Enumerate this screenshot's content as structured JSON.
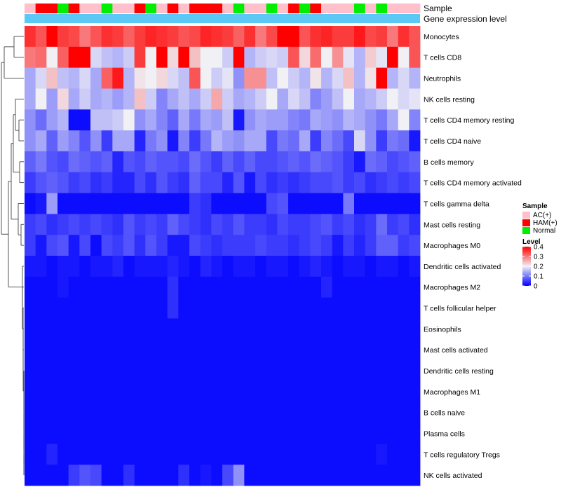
{
  "chart_data": {
    "type": "heatmap",
    "title": "",
    "xlabel": "",
    "ylabel": "",
    "annotation_labels": {
      "sample": "Sample",
      "gene_expression": "Gene expression level"
    },
    "sample_groups": [
      "AC(+)",
      "HAM(+)",
      "HAM(+)",
      "Normal",
      "HAM(+)",
      "AC(+)",
      "AC(+)",
      "Normal",
      "AC(+)",
      "AC(+)",
      "HAM(+)",
      "Normal",
      "AC(+)",
      "HAM(+)",
      "AC(+)",
      "HAM(+)",
      "HAM(+)",
      "HAM(+)",
      "AC(+)",
      "Normal",
      "AC(+)",
      "AC(+)",
      "Normal",
      "AC(+)",
      "HAM(+)",
      "Normal",
      "HAM(+)",
      "AC(+)",
      "AC(+)",
      "AC(+)",
      "Normal",
      "AC(+)",
      "Normal",
      "AC(+)",
      "AC(+)",
      "AC(+)"
    ],
    "rows": [
      {
        "name": "Monocytes",
        "values": [
          0.36,
          0.33,
          0.4,
          0.35,
          0.34,
          0.3,
          0.33,
          0.36,
          0.35,
          0.32,
          0.35,
          0.37,
          0.36,
          0.35,
          0.33,
          0.34,
          0.37,
          0.36,
          0.35,
          0.32,
          0.36,
          0.3,
          0.34,
          0.42,
          0.42,
          0.33,
          0.36,
          0.37,
          0.35,
          0.35,
          0.38,
          0.34,
          0.35,
          0.3,
          0.36,
          0.33
        ]
      },
      {
        "name": "T cells CD8",
        "values": [
          0.3,
          0.31,
          0.2,
          0.32,
          0.42,
          0.42,
          0.18,
          0.16,
          0.15,
          0.17,
          0.35,
          0.2,
          0.42,
          0.22,
          0.42,
          0.24,
          0.2,
          0.2,
          0.17,
          0.42,
          0.15,
          0.17,
          0.18,
          0.17,
          0.33,
          0.22,
          0.31,
          0.2,
          0.28,
          0.19,
          0.15,
          0.23,
          0.19,
          0.41,
          0.2,
          0.33
        ]
      },
      {
        "name": "Neutrophils",
        "values": [
          0.14,
          0.18,
          0.24,
          0.16,
          0.15,
          0.18,
          0.14,
          0.32,
          0.38,
          0.15,
          0.21,
          0.2,
          0.22,
          0.18,
          0.16,
          0.33,
          0.2,
          0.17,
          0.19,
          0.12,
          0.28,
          0.28,
          0.16,
          0.2,
          0.17,
          0.15,
          0.21,
          0.15,
          0.18,
          0.24,
          0.15,
          0.21,
          0.43,
          0.15,
          0.18,
          0.15
        ]
      },
      {
        "name": "NK cells resting",
        "values": [
          0.14,
          0.2,
          0.13,
          0.22,
          0.14,
          0.17,
          0.14,
          0.15,
          0.13,
          0.15,
          0.24,
          0.17,
          0.11,
          0.14,
          0.16,
          0.14,
          0.17,
          0.26,
          0.17,
          0.14,
          0.15,
          0.17,
          0.2,
          0.14,
          0.18,
          0.16,
          0.11,
          0.13,
          0.16,
          0.2,
          0.14,
          0.15,
          0.17,
          0.2,
          0.18,
          0.19
        ]
      },
      {
        "name": "T cells CD4 memory resting",
        "values": [
          0.12,
          0.09,
          0.13,
          0.15,
          0.01,
          0.01,
          0.16,
          0.16,
          0.17,
          0.2,
          0.12,
          0.14,
          0.11,
          0.08,
          0.14,
          0.1,
          0.14,
          0.13,
          0.16,
          0.02,
          0.12,
          0.14,
          0.13,
          0.13,
          0.11,
          0.1,
          0.14,
          0.13,
          0.12,
          0.15,
          0.14,
          0.12,
          0.1,
          0.14,
          0.2,
          0.11
        ]
      },
      {
        "name": "T cells CD4 naive",
        "values": [
          0.12,
          0.14,
          0.08,
          0.13,
          0.11,
          0.07,
          0.12,
          0.05,
          0.14,
          0.14,
          0.03,
          0.1,
          0.12,
          0.02,
          0.11,
          0.05,
          0.1,
          0.15,
          0.13,
          0.12,
          0.14,
          0.14,
          0.06,
          0.1,
          0.09,
          0.14,
          0.05,
          0.11,
          0.09,
          0.06,
          0.18,
          0.12,
          0.05,
          0.1,
          0.09,
          0.02
        ]
      },
      {
        "name": "B cells memory",
        "values": [
          0.08,
          0.1,
          0.07,
          0.06,
          0.09,
          0.08,
          0.07,
          0.08,
          0.03,
          0.07,
          0.06,
          0.08,
          0.07,
          0.07,
          0.06,
          0.09,
          0.07,
          0.05,
          0.08,
          0.06,
          0.08,
          0.06,
          0.06,
          0.07,
          0.08,
          0.07,
          0.09,
          0.08,
          0.07,
          0.05,
          0.02,
          0.09,
          0.08,
          0.06,
          0.07,
          0.08
        ]
      },
      {
        "name": "T cells CD4 memory activated",
        "values": [
          0.05,
          0.07,
          0.08,
          0.07,
          0.05,
          0.06,
          0.04,
          0.05,
          0.03,
          0.03,
          0.06,
          0.04,
          0.07,
          0.05,
          0.04,
          0.08,
          0.06,
          0.06,
          0.03,
          0.07,
          0.02,
          0.06,
          0.04,
          0.05,
          0.04,
          0.05,
          0.06,
          0.06,
          0.07,
          0.05,
          0.06,
          0.04,
          0.05,
          0.06,
          0.05,
          0.06
        ]
      },
      {
        "name": "T cells gamma delta",
        "values": [
          0.01,
          0.02,
          0.13,
          0.01,
          0.01,
          0.01,
          0.01,
          0.01,
          0.01,
          0.01,
          0.01,
          0.01,
          0.01,
          0.01,
          0.01,
          0.05,
          0.04,
          0.01,
          0.01,
          0.01,
          0.01,
          0.01,
          0.06,
          0.07,
          0.01,
          0.01,
          0.01,
          0.01,
          0.01,
          0.1,
          0.01,
          0.01,
          0.01,
          0.01,
          0.01,
          0.01
        ]
      },
      {
        "name": "Mast cells resting",
        "values": [
          0.05,
          0.06,
          0.04,
          0.05,
          0.06,
          0.05,
          0.06,
          0.05,
          0.04,
          0.07,
          0.05,
          0.06,
          0.05,
          0.08,
          0.06,
          0.05,
          0.04,
          0.06,
          0.05,
          0.07,
          0.05,
          0.05,
          0.04,
          0.06,
          0.05,
          0.05,
          0.06,
          0.07,
          0.05,
          0.06,
          0.04,
          0.05,
          0.09,
          0.05,
          0.06,
          0.04
        ]
      },
      {
        "name": "Macrophages M0",
        "values": [
          0.05,
          0.02,
          0.06,
          0.07,
          0.02,
          0.06,
          0.01,
          0.06,
          0.05,
          0.07,
          0.04,
          0.07,
          0.05,
          0.02,
          0.02,
          0.06,
          0.05,
          0.04,
          0.05,
          0.05,
          0.05,
          0.06,
          0.05,
          0.05,
          0.04,
          0.05,
          0.06,
          0.05,
          0.02,
          0.05,
          0.03,
          0.05,
          0.08,
          0.08,
          0.05,
          0.06
        ]
      },
      {
        "name": "Dendritic cells activated",
        "values": [
          0.02,
          0.02,
          0.01,
          0.02,
          0.02,
          0.01,
          0.02,
          0.02,
          0.03,
          0.01,
          0.02,
          0.02,
          0.02,
          0.03,
          0.02,
          0.01,
          0.03,
          0.02,
          0.01,
          0.02,
          0.02,
          0.01,
          0.02,
          0.02,
          0.01,
          0.02,
          0.03,
          0.02,
          0.01,
          0.02,
          0.02,
          0.01,
          0.02,
          0.02,
          0.01,
          0.02
        ]
      },
      {
        "name": "Macrophages M2",
        "values": [
          0.01,
          0.01,
          0.01,
          0.02,
          0.01,
          0.01,
          0.01,
          0.01,
          0.01,
          0.01,
          0.01,
          0.01,
          0.01,
          0.04,
          0.01,
          0.01,
          0.01,
          0.01,
          0.01,
          0.01,
          0.01,
          0.01,
          0.01,
          0.01,
          0.01,
          0.01,
          0.01,
          0.03,
          0.01,
          0.01,
          0.01,
          0.01,
          0.01,
          0.01,
          0.01,
          0.01
        ]
      },
      {
        "name": "T cells follicular helper",
        "values": [
          0.01,
          0.01,
          0.01,
          0.01,
          0.01,
          0.01,
          0.01,
          0.01,
          0.01,
          0.01,
          0.01,
          0.01,
          0.01,
          0.04,
          0.01,
          0.01,
          0.01,
          0.01,
          0.01,
          0.01,
          0.01,
          0.01,
          0.01,
          0.01,
          0.01,
          0.01,
          0.01,
          0.01,
          0.01,
          0.01,
          0.01,
          0.01,
          0.01,
          0.01,
          0.01,
          0.01
        ]
      },
      {
        "name": "Eosinophils",
        "values": [
          0.01,
          0.01,
          0.01,
          0.01,
          0.01,
          0.01,
          0.01,
          0.01,
          0.01,
          0.01,
          0.01,
          0.01,
          0.01,
          0.01,
          0.01,
          0.01,
          0.01,
          0.01,
          0.01,
          0.01,
          0.01,
          0.01,
          0.01,
          0.01,
          0.01,
          0.01,
          0.01,
          0.01,
          0.01,
          0.01,
          0.01,
          0.01,
          0.01,
          0.01,
          0.01,
          0.01
        ]
      },
      {
        "name": "Mast cells activated",
        "values": [
          0.01,
          0.01,
          0.01,
          0.01,
          0.01,
          0.01,
          0.01,
          0.01,
          0.01,
          0.01,
          0.01,
          0.01,
          0.01,
          0.01,
          0.01,
          0.01,
          0.01,
          0.01,
          0.01,
          0.01,
          0.01,
          0.01,
          0.01,
          0.01,
          0.01,
          0.01,
          0.01,
          0.01,
          0.01,
          0.01,
          0.01,
          0.01,
          0.01,
          0.01,
          0.01,
          0.01
        ]
      },
      {
        "name": "Dendritic cells resting",
        "values": [
          0.01,
          0.01,
          0.01,
          0.01,
          0.01,
          0.01,
          0.01,
          0.01,
          0.01,
          0.01,
          0.01,
          0.01,
          0.01,
          0.01,
          0.01,
          0.01,
          0.01,
          0.01,
          0.01,
          0.01,
          0.01,
          0.01,
          0.01,
          0.01,
          0.01,
          0.01,
          0.01,
          0.01,
          0.01,
          0.01,
          0.01,
          0.01,
          0.01,
          0.01,
          0.01,
          0.01
        ]
      },
      {
        "name": "Macrophages M1",
        "values": [
          0.01,
          0.01,
          0.01,
          0.01,
          0.01,
          0.01,
          0.01,
          0.01,
          0.01,
          0.01,
          0.01,
          0.01,
          0.01,
          0.01,
          0.01,
          0.01,
          0.01,
          0.01,
          0.01,
          0.01,
          0.01,
          0.01,
          0.01,
          0.01,
          0.01,
          0.01,
          0.01,
          0.01,
          0.01,
          0.01,
          0.01,
          0.01,
          0.01,
          0.01,
          0.01,
          0.01
        ]
      },
      {
        "name": "B cells naive",
        "values": [
          0.01,
          0.01,
          0.01,
          0.01,
          0.01,
          0.01,
          0.01,
          0.01,
          0.01,
          0.01,
          0.01,
          0.01,
          0.01,
          0.01,
          0.01,
          0.01,
          0.01,
          0.01,
          0.01,
          0.01,
          0.01,
          0.01,
          0.01,
          0.01,
          0.01,
          0.01,
          0.01,
          0.01,
          0.01,
          0.01,
          0.01,
          0.01,
          0.01,
          0.01,
          0.01,
          0.01
        ]
      },
      {
        "name": "Plasma cells",
        "values": [
          0.01,
          0.01,
          0.01,
          0.01,
          0.01,
          0.01,
          0.01,
          0.01,
          0.01,
          0.01,
          0.01,
          0.01,
          0.01,
          0.01,
          0.01,
          0.01,
          0.01,
          0.01,
          0.01,
          0.01,
          0.01,
          0.01,
          0.01,
          0.01,
          0.01,
          0.01,
          0.01,
          0.01,
          0.01,
          0.01,
          0.01,
          0.01,
          0.01,
          0.01,
          0.01,
          0.01
        ]
      },
      {
        "name": "T cells regulatory  Tregs",
        "values": [
          0.01,
          0.01,
          0.03,
          0.01,
          0.01,
          0.01,
          0.01,
          0.01,
          0.01,
          0.01,
          0.01,
          0.01,
          0.01,
          0.01,
          0.01,
          0.01,
          0.01,
          0.01,
          0.01,
          0.01,
          0.01,
          0.01,
          0.01,
          0.01,
          0.01,
          0.01,
          0.01,
          0.01,
          0.01,
          0.01,
          0.01,
          0.01,
          0.02,
          0.01,
          0.01,
          0.01
        ]
      },
      {
        "name": "NK cells activated",
        "values": [
          0.01,
          0.01,
          0.01,
          0.01,
          0.05,
          0.07,
          0.06,
          0.01,
          0.01,
          0.04,
          0.01,
          0.01,
          0.01,
          0.01,
          0.04,
          0.01,
          0.02,
          0.01,
          0.06,
          0.12,
          0.01,
          0.01,
          0.01,
          0.01,
          0.01,
          0.01,
          0.01,
          0.01,
          0.01,
          0.01,
          0.01,
          0.01,
          0.01,
          0.01,
          0.01,
          0.01
        ]
      }
    ],
    "color_scale": {
      "min": 0,
      "max": 0.4,
      "stops": [
        {
          "value": 0,
          "color": "#0000ff"
        },
        {
          "value": 0.2,
          "color": "#f0f0f5"
        },
        {
          "value": 0.4,
          "color": "#ff0000"
        }
      ]
    },
    "legends": {
      "sample": {
        "title": "Sample",
        "entries": [
          {
            "label": "AC(+)",
            "color": "#ffc0cb"
          },
          {
            "label": "HAM(+)",
            "color": "#ff0000"
          },
          {
            "label": "Normal",
            "color": "#00ee00"
          }
        ]
      },
      "level": {
        "title": "Level",
        "ticks": [
          {
            "value": 0.4,
            "label": "0.4"
          },
          {
            "value": 0.3,
            "label": "0.3"
          },
          {
            "value": 0.2,
            "label": "0.2"
          },
          {
            "value": 0.1,
            "label": "0.1"
          },
          {
            "value": 0,
            "label": "0"
          }
        ]
      }
    },
    "gene_expression_bar_color": "#5bc8f5",
    "row_dendrogram": true
  }
}
